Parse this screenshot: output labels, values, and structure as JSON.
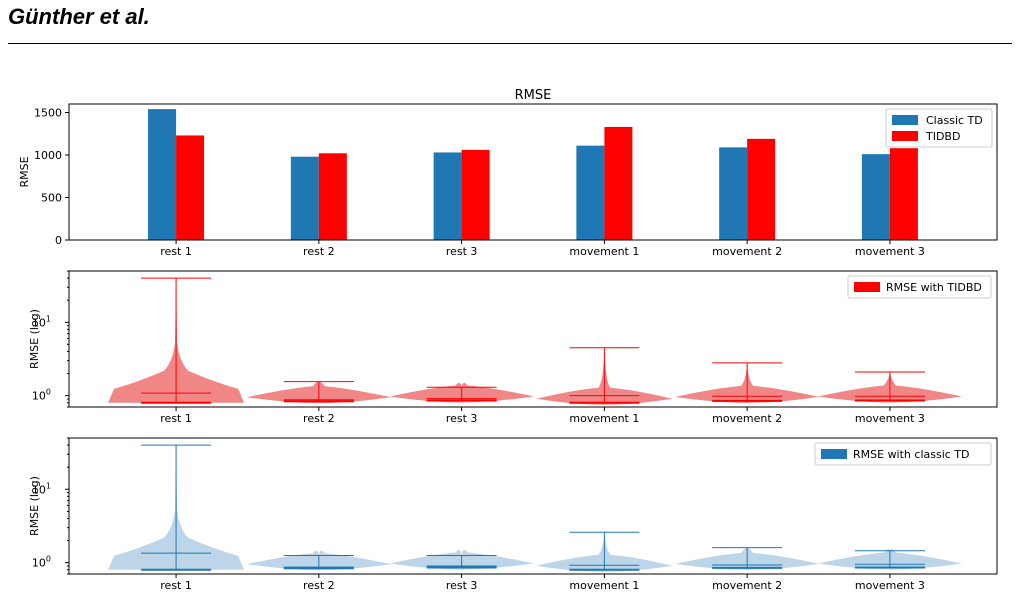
{
  "header": {
    "title": "Günther et al."
  },
  "colors": {
    "classic": "#1f77b4",
    "tidbd": "#ff0000",
    "violin_red": "#f08080",
    "violin_blue": "#b8d3e8"
  },
  "chart_data": [
    {
      "type": "bar",
      "title": "RMSE",
      "ylabel": "RMSE",
      "ylim": [
        0,
        1600
      ],
      "yticks": [
        0,
        500,
        1000,
        1500
      ],
      "categories": [
        "rest 1",
        "rest 2",
        "rest 3",
        "movement 1",
        "movement 2",
        "movement 3"
      ],
      "series": [
        {
          "name": "Classic TD",
          "color": "#1f77b4",
          "values": [
            1540,
            980,
            1030,
            1110,
            1090,
            1010
          ]
        },
        {
          "name": "TIDBD",
          "color": "#ff0000",
          "values": [
            1230,
            1020,
            1060,
            1330,
            1190,
            1080
          ]
        }
      ],
      "legend": "top-right"
    },
    {
      "type": "violin",
      "ylabel": "RMSE (log)",
      "yscale": "log",
      "ylim": [
        0.7,
        50
      ],
      "yticks": [
        {
          "base": "10",
          "exp": "0",
          "value": 1
        },
        {
          "base": "10",
          "exp": "1",
          "value": 10
        }
      ],
      "categories": [
        "rest 1",
        "rest 2",
        "rest 3",
        "movement 1",
        "movement 2",
        "movement 3"
      ],
      "series_name": "RMSE with TIDBD",
      "color": "#ff0000",
      "violins": [
        {
          "min": 0.8,
          "max": 40,
          "median": 1.08
        },
        {
          "min": 0.84,
          "max": 1.55,
          "median": 0.88
        },
        {
          "min": 0.86,
          "max": 1.3,
          "median": 0.91
        },
        {
          "min": 0.8,
          "max": 4.5,
          "median": 1.0
        },
        {
          "min": 0.85,
          "max": 2.8,
          "median": 0.98
        },
        {
          "min": 0.86,
          "max": 2.1,
          "median": 0.98
        }
      ],
      "legend": "top-right"
    },
    {
      "type": "violin",
      "ylabel": "RMSE (log)",
      "yscale": "log",
      "ylim": [
        0.7,
        50
      ],
      "yticks": [
        {
          "base": "10",
          "exp": "0",
          "value": 1
        },
        {
          "base": "10",
          "exp": "1",
          "value": 10
        }
      ],
      "categories": [
        "rest 1",
        "rest 2",
        "rest 3",
        "movement 1",
        "movement 2",
        "movement 3"
      ],
      "series_name": "RMSE with classic TD",
      "color": "#1f77b4",
      "violins": [
        {
          "min": 0.8,
          "max": 40,
          "median": 1.35
        },
        {
          "min": 0.84,
          "max": 1.25,
          "median": 0.87
        },
        {
          "min": 0.86,
          "max": 1.25,
          "median": 0.9
        },
        {
          "min": 0.8,
          "max": 2.6,
          "median": 0.92
        },
        {
          "min": 0.85,
          "max": 1.6,
          "median": 0.93
        },
        {
          "min": 0.86,
          "max": 1.45,
          "median": 0.95
        }
      ],
      "legend": "top-right"
    }
  ]
}
